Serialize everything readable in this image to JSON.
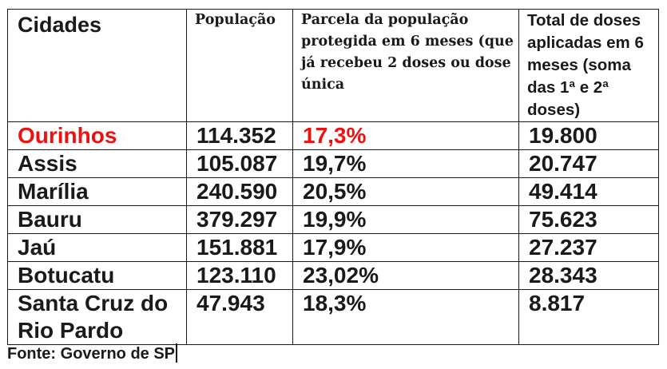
{
  "table": {
    "headers": {
      "city": "Cidades",
      "population": "População",
      "protected": "Parcela da população protegida em 6 meses (que já recebeu 2 doses ou dose única",
      "doses": "Total de doses aplicadas em 6 meses (soma das 1ª e 2ª doses)"
    },
    "rows": [
      {
        "city": "Ourinhos",
        "population": "114.352",
        "protected": "17,3%",
        "doses": "19.800",
        "highlight": true
      },
      {
        "city": "Assis",
        "population": "105.087",
        "protected": "19,7%",
        "doses": "20.747"
      },
      {
        "city": "Marília",
        "population": "240.590",
        "protected": "20,5%",
        "doses": "49.414"
      },
      {
        "city": "Bauru",
        "population": "379.297",
        "protected": "19,9%",
        "doses": "75.623"
      },
      {
        "city": "Jaú",
        "population": "151.881",
        "protected": "17,9%",
        "doses": "27.237"
      },
      {
        "city": "Botucatu",
        "population": "123.110",
        "protected": "23,02%",
        "doses": "28.343"
      },
      {
        "city": "Santa Cruz do Rio Pardo",
        "population": "47.943",
        "protected": "18,3%",
        "doses": "8.817"
      }
    ]
  },
  "source": "Fonte: Governo de SP",
  "colors": {
    "highlight": "#ee1111",
    "text": "#1a1a1a",
    "border": "#1a1a1a"
  }
}
